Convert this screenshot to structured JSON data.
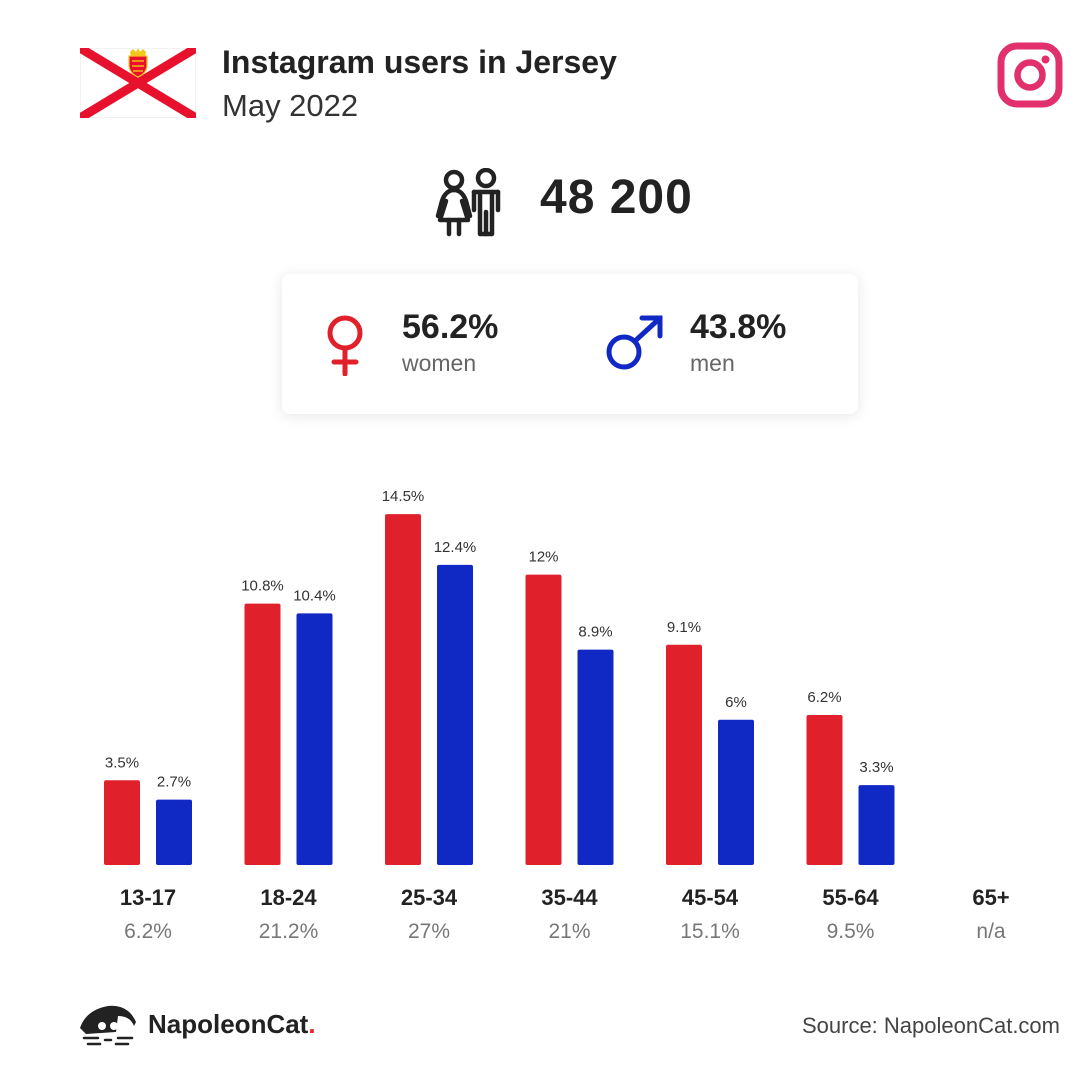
{
  "header": {
    "title": "Instagram users in Jersey",
    "subtitle": "May 2022"
  },
  "total_users": "48 200",
  "gender": {
    "women": {
      "percent": "56.2%",
      "label": "women"
    },
    "men": {
      "percent": "43.8%",
      "label": "men"
    }
  },
  "colors": {
    "women": "#e0202a",
    "men": "#1029c4",
    "instagram": "#e1306c",
    "flag_red": "#e8112d"
  },
  "icons": [
    "jersey-flag-icon",
    "instagram-icon",
    "people-icon",
    "female-symbol-icon",
    "male-symbol-icon",
    "napoleoncat-logo-icon"
  ],
  "chart_data": {
    "type": "bar",
    "categories": [
      "13-17",
      "18-24",
      "25-34",
      "35-44",
      "45-54",
      "55-64",
      "65+"
    ],
    "category_totals": [
      "6.2%",
      "21.2%",
      "27%",
      "21%",
      "15.1%",
      "9.5%",
      "n/a"
    ],
    "series": [
      {
        "name": "women",
        "values": [
          3.5,
          10.8,
          14.5,
          12,
          9.1,
          6.2,
          null
        ],
        "labels": [
          "3.5%",
          "10.8%",
          "14.5%",
          "12%",
          "9.1%",
          "6.2%",
          ""
        ]
      },
      {
        "name": "men",
        "values": [
          2.7,
          10.4,
          12.4,
          8.9,
          6,
          3.3,
          null
        ],
        "labels": [
          "2.7%",
          "10.4%",
          "12.4%",
          "8.9%",
          "6%",
          "3.3%",
          ""
        ]
      }
    ],
    "title": "",
    "xlabel": "",
    "ylabel": "",
    "grid": false,
    "legend": "none"
  },
  "footer": {
    "brand_name": "NapoleonCat",
    "brand_dot": ".",
    "source": "Source: NapoleonCat.com"
  }
}
